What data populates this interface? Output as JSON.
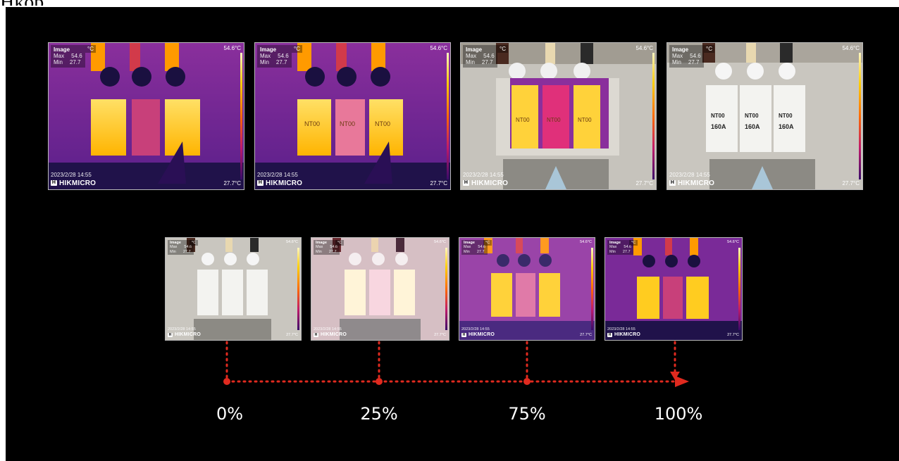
{
  "page_top_text": "Hkop.",
  "overlay": {
    "title": "Image",
    "unit": "°C",
    "max_label": "Max",
    "max_value": "54.6",
    "min_label": "Min",
    "min_value": "27.7",
    "scale_max": "54.6°C",
    "scale_min": "27.7°C",
    "timestamp": "2023/2/28 14:55",
    "brand": "HIKMICRO",
    "logo_glyph": "H"
  },
  "fuse_labels": {
    "model": "NT00",
    "rating": "160A"
  },
  "top_row": [
    {
      "mode": "thermal",
      "blend": 1.0
    },
    {
      "mode": "thermal-detail",
      "blend": 1.0
    },
    {
      "mode": "picture-in-picture",
      "blend": 0.5
    },
    {
      "mode": "visual",
      "blend": 0.0
    }
  ],
  "bottom_row": [
    {
      "mode": "visual",
      "blend": 0.0
    },
    {
      "mode": "blend",
      "blend": 0.25
    },
    {
      "mode": "blend",
      "blend": 0.75
    },
    {
      "mode": "thermal",
      "blend": 1.0
    }
  ],
  "timeline": {
    "labels": [
      "0%",
      "25%",
      "75%",
      "100%"
    ],
    "line_color": "#e02a1f"
  }
}
